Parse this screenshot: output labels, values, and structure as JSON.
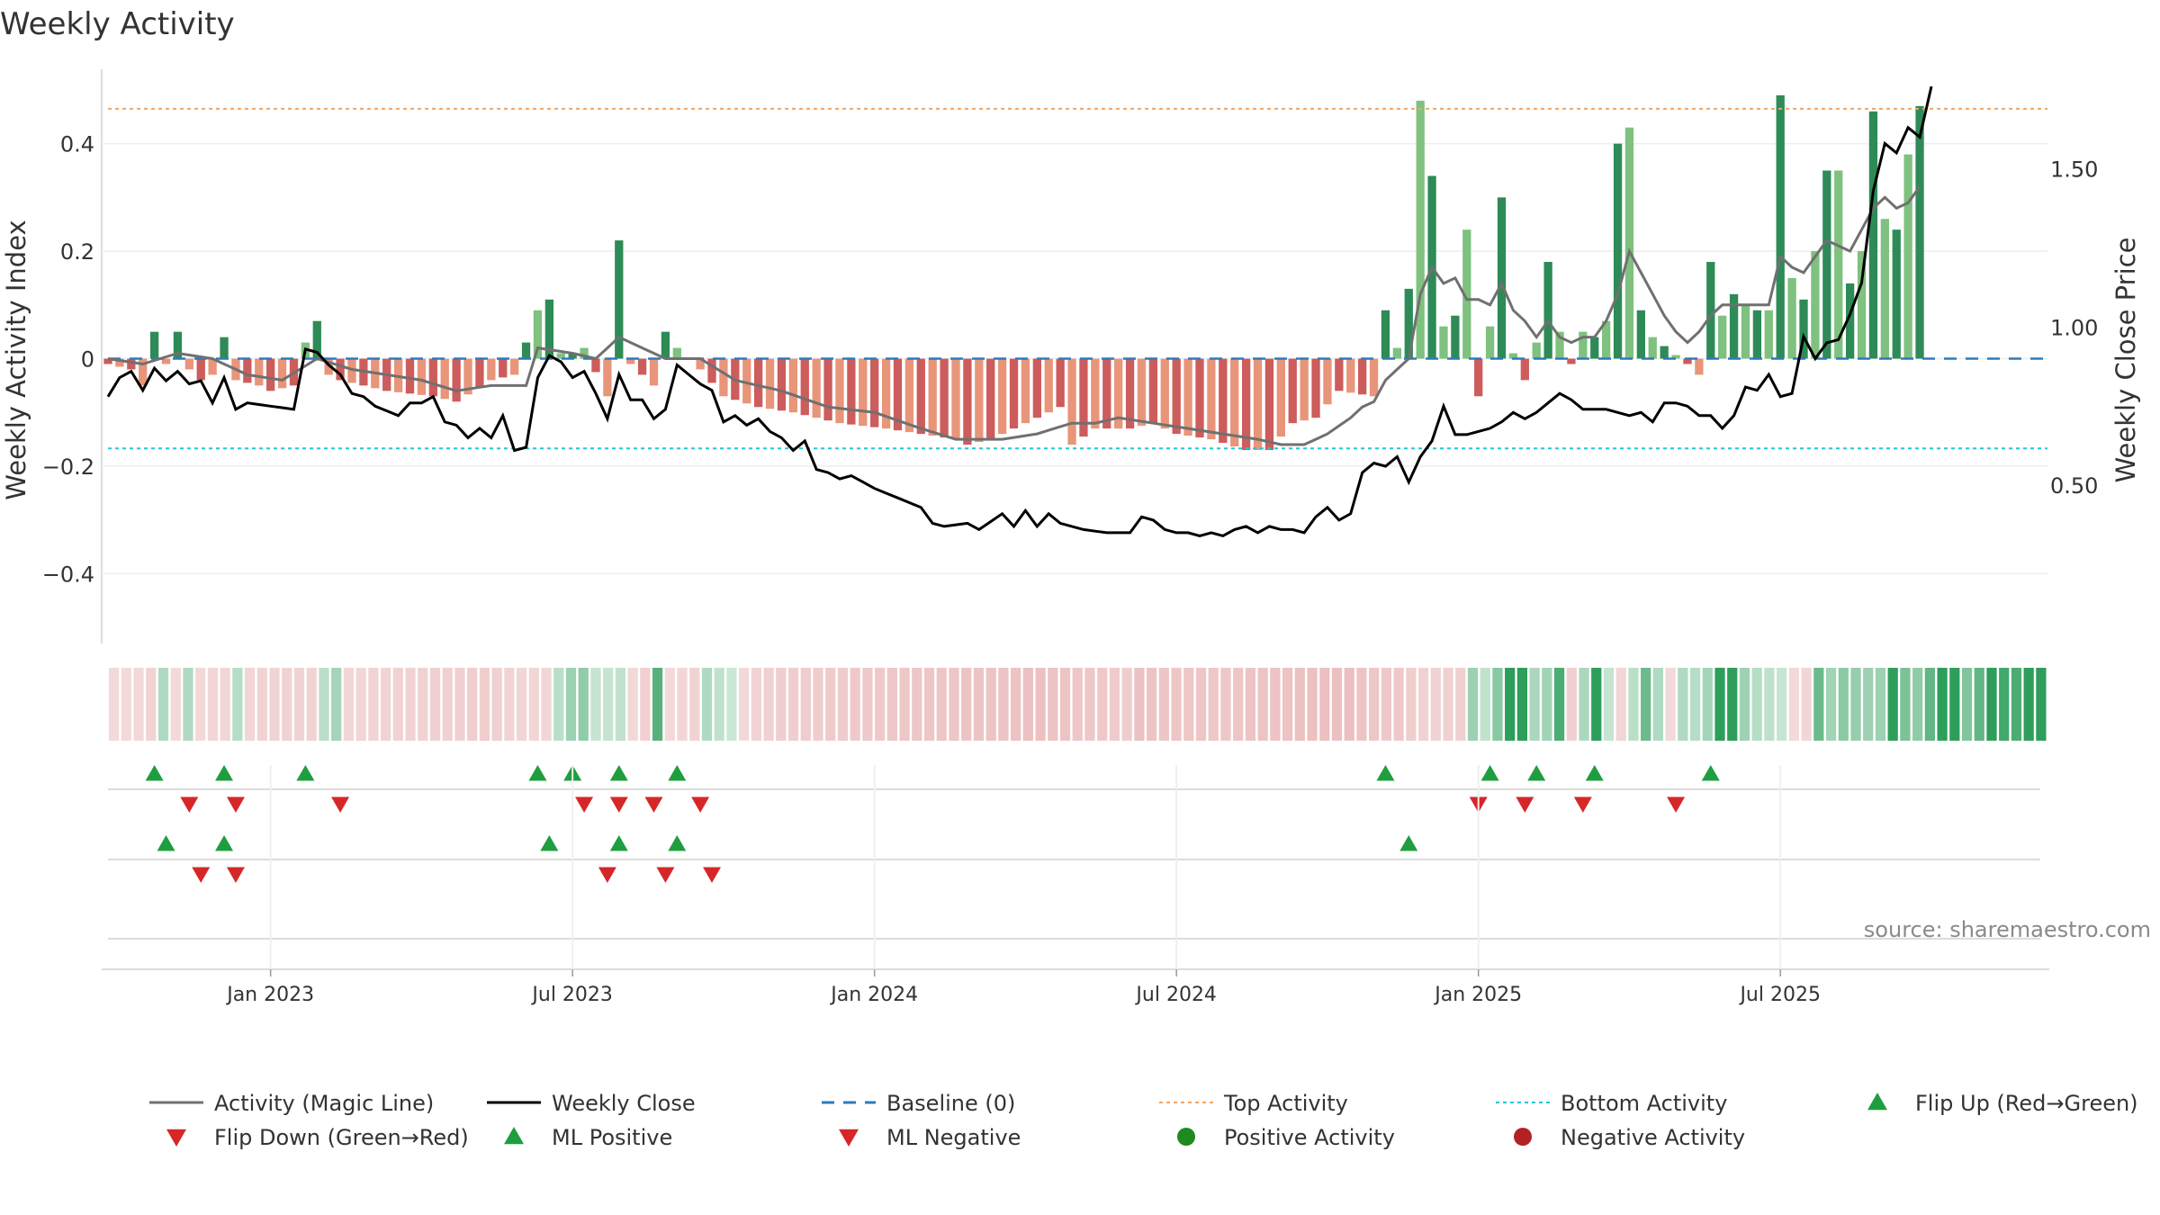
{
  "chart_data": {
    "type": "bar",
    "title": "Weekly Activity",
    "ylabel": "Weekly Activity Index",
    "y2label": "Weekly Close Price",
    "ylim": [
      -0.53,
      0.53
    ],
    "y2lim": [
      0.0,
      1.8
    ],
    "yticks": [
      {
        "v": 0.4,
        "label": "0.4"
      },
      {
        "v": 0.2,
        "label": "0.2"
      },
      {
        "v": 0,
        "label": "0"
      },
      {
        "v": -0.2,
        "label": "−0.2"
      },
      {
        "v": -0.4,
        "label": "−0.4"
      }
    ],
    "y2ticks": [
      {
        "v": 1.5,
        "label": "1.50"
      },
      {
        "v": 1.0,
        "label": "1.00"
      },
      {
        "v": 0.5,
        "label": "0.50"
      }
    ],
    "x_range_weeks": [
      0,
      167
    ],
    "xticks": [
      {
        "w": 14,
        "label": "Jan 2023"
      },
      {
        "w": 40,
        "label": "Jul 2023"
      },
      {
        "w": 66,
        "label": "Jan 2024"
      },
      {
        "w": 92,
        "label": "Jul 2024"
      },
      {
        "w": 118,
        "label": "Jan 2025"
      },
      {
        "w": 144,
        "label": "Jul 2025"
      }
    ],
    "top_activity": 0.465,
    "bottom_activity": -0.167,
    "baseline": 0,
    "activity_keys": [
      [
        0,
        -0.01
      ],
      [
        2,
        -0.02
      ],
      [
        3,
        -0.05
      ],
      [
        4,
        0.05
      ],
      [
        5,
        -0.01
      ],
      [
        6,
        0.05
      ],
      [
        7,
        -0.02
      ],
      [
        8,
        -0.04
      ],
      [
        9,
        -0.03
      ],
      [
        10,
        0.04
      ],
      [
        11,
        -0.04
      ],
      [
        13,
        -0.05
      ],
      [
        14,
        -0.06
      ],
      [
        16,
        -0.05
      ],
      [
        17,
        0.03
      ],
      [
        18,
        0.07
      ],
      [
        19,
        -0.03
      ],
      [
        20,
        -0.04
      ],
      [
        24,
        -0.06
      ],
      [
        28,
        -0.07
      ],
      [
        30,
        -0.08
      ],
      [
        33,
        -0.04
      ],
      [
        35,
        -0.03
      ],
      [
        37,
        0.09
      ],
      [
        38,
        0.11
      ],
      [
        39,
        0.01
      ],
      [
        40,
        0.01
      ],
      [
        41,
        0.02
      ],
      [
        43,
        -0.07
      ],
      [
        44,
        0.22
      ],
      [
        45,
        -0.01
      ],
      [
        47,
        -0.05
      ],
      [
        48,
        0.05
      ],
      [
        49,
        0.02
      ],
      [
        51,
        -0.02
      ],
      [
        53,
        -0.07
      ],
      [
        56,
        -0.09
      ],
      [
        59,
        -0.1
      ],
      [
        63,
        -0.12
      ],
      [
        67,
        -0.13
      ],
      [
        70,
        -0.14
      ],
      [
        73,
        -0.15
      ],
      [
        74,
        -0.16
      ],
      [
        76,
        -0.15
      ],
      [
        80,
        -0.11
      ],
      [
        82,
        -0.09
      ],
      [
        83,
        -0.16
      ],
      [
        85,
        -0.13
      ],
      [
        88,
        -0.13
      ],
      [
        90,
        -0.12
      ],
      [
        92,
        -0.14
      ],
      [
        95,
        -0.15
      ],
      [
        98,
        -0.17
      ],
      [
        100,
        -0.17
      ],
      [
        102,
        -0.12
      ],
      [
        104,
        -0.11
      ],
      [
        106,
        -0.06
      ],
      [
        109,
        -0.07
      ],
      [
        110,
        0.09
      ],
      [
        111,
        0.02
      ],
      [
        112,
        0.13
      ],
      [
        113,
        0.48
      ],
      [
        114,
        0.34
      ],
      [
        115,
        0.06
      ],
      [
        116,
        0.08
      ],
      [
        117,
        0.24
      ],
      [
        118,
        -0.07
      ],
      [
        119,
        0.06
      ],
      [
        120,
        0.3
      ],
      [
        121,
        0.01
      ],
      [
        122,
        -0.04
      ],
      [
        123,
        0.03
      ],
      [
        124,
        0.18
      ],
      [
        125,
        0.05
      ],
      [
        126,
        -0.01
      ],
      [
        127,
        0.05
      ],
      [
        128,
        0.04
      ],
      [
        129,
        0.07
      ],
      [
        130,
        0.4
      ],
      [
        131,
        0.43
      ],
      [
        132,
        0.09
      ],
      [
        133,
        0.04
      ],
      [
        136,
        -0.01
      ],
      [
        137,
        -0.03
      ],
      [
        138,
        0.18
      ],
      [
        139,
        0.08
      ],
      [
        140,
        0.12
      ],
      [
        141,
        0.1
      ],
      [
        142,
        0.09
      ],
      [
        143,
        0.09
      ],
      [
        144,
        0.49
      ],
      [
        145,
        0.15
      ],
      [
        146,
        0.11
      ],
      [
        147,
        0.2
      ],
      [
        148,
        0.35
      ],
      [
        149,
        0.35
      ],
      [
        150,
        0.14
      ],
      [
        151,
        0.2
      ],
      [
        152,
        0.46
      ],
      [
        153,
        0.26
      ],
      [
        154,
        0.24
      ],
      [
        155,
        0.38
      ],
      [
        156,
        0.47
      ]
    ],
    "magic_line_keys": [
      [
        0,
        0
      ],
      [
        3,
        -0.01
      ],
      [
        6,
        0.01
      ],
      [
        9,
        0
      ],
      [
        12,
        -0.03
      ],
      [
        15,
        -0.04
      ],
      [
        18,
        0.0
      ],
      [
        21,
        -0.02
      ],
      [
        24,
        -0.03
      ],
      [
        27,
        -0.04
      ],
      [
        30,
        -0.06
      ],
      [
        33,
        -0.05
      ],
      [
        36,
        -0.05
      ],
      [
        37,
        0.02
      ],
      [
        40,
        0.01
      ],
      [
        42,
        0
      ],
      [
        44,
        0.04
      ],
      [
        46,
        0.02
      ],
      [
        48,
        0
      ],
      [
        51,
        0
      ],
      [
        54,
        -0.04
      ],
      [
        58,
        -0.06
      ],
      [
        62,
        -0.09
      ],
      [
        66,
        -0.1
      ],
      [
        70,
        -0.13
      ],
      [
        73,
        -0.15
      ],
      [
        77,
        -0.15
      ],
      [
        80,
        -0.14
      ],
      [
        83,
        -0.12
      ],
      [
        85,
        -0.12
      ],
      [
        87,
        -0.11
      ],
      [
        90,
        -0.12
      ],
      [
        93,
        -0.13
      ],
      [
        96,
        -0.14
      ],
      [
        99,
        -0.15
      ],
      [
        101,
        -0.16
      ],
      [
        103,
        -0.16
      ],
      [
        105,
        -0.14
      ],
      [
        107,
        -0.11
      ],
      [
        108,
        -0.09
      ],
      [
        109,
        -0.08
      ],
      [
        110,
        -0.04
      ],
      [
        112,
        0.0
      ],
      [
        113,
        0.12
      ],
      [
        114,
        0.17
      ],
      [
        115,
        0.14
      ],
      [
        116,
        0.15
      ],
      [
        117,
        0.11
      ],
      [
        118,
        0.11
      ],
      [
        119,
        0.1
      ],
      [
        120,
        0.14
      ],
      [
        121,
        0.09
      ],
      [
        122,
        0.07
      ],
      [
        123,
        0.04
      ],
      [
        124,
        0.07
      ],
      [
        125,
        0.04
      ],
      [
        126,
        0.03
      ],
      [
        127,
        0.04
      ],
      [
        128,
        0.04
      ],
      [
        129,
        0.07
      ],
      [
        130,
        0.12
      ],
      [
        131,
        0.2
      ],
      [
        132,
        0.16
      ],
      [
        133,
        0.12
      ],
      [
        134,
        0.08
      ],
      [
        135,
        0.05
      ],
      [
        136,
        0.03
      ],
      [
        137,
        0.05
      ],
      [
        138,
        0.08
      ],
      [
        139,
        0.1
      ],
      [
        140,
        0.1
      ],
      [
        142,
        0.1
      ],
      [
        143,
        0.1
      ],
      [
        144,
        0.19
      ],
      [
        145,
        0.17
      ],
      [
        146,
        0.16
      ],
      [
        147,
        0.19
      ],
      [
        148,
        0.22
      ],
      [
        149,
        0.21
      ],
      [
        150,
        0.2
      ],
      [
        151,
        0.24
      ],
      [
        152,
        0.28
      ],
      [
        153,
        0.3
      ],
      [
        154,
        0.28
      ],
      [
        155,
        0.29
      ],
      [
        156,
        0.32
      ]
    ],
    "close_keys": [
      [
        0,
        0.78
      ],
      [
        1,
        0.84
      ],
      [
        2,
        0.86
      ],
      [
        3,
        0.8
      ],
      [
        4,
        0.87
      ],
      [
        5,
        0.83
      ],
      [
        6,
        0.86
      ],
      [
        7,
        0.82
      ],
      [
        8,
        0.83
      ],
      [
        9,
        0.76
      ],
      [
        10,
        0.84
      ],
      [
        11,
        0.74
      ],
      [
        12,
        0.76
      ],
      [
        14,
        0.75
      ],
      [
        16,
        0.74
      ],
      [
        17,
        0.93
      ],
      [
        18,
        0.92
      ],
      [
        19,
        0.88
      ],
      [
        20,
        0.85
      ],
      [
        21,
        0.79
      ],
      [
        22,
        0.78
      ],
      [
        23,
        0.75
      ],
      [
        25,
        0.72
      ],
      [
        26,
        0.76
      ],
      [
        27,
        0.76
      ],
      [
        28,
        0.78
      ],
      [
        29,
        0.7
      ],
      [
        30,
        0.69
      ],
      [
        31,
        0.65
      ],
      [
        32,
        0.68
      ],
      [
        33,
        0.65
      ],
      [
        34,
        0.72
      ],
      [
        35,
        0.61
      ],
      [
        36,
        0.62
      ],
      [
        37,
        0.84
      ],
      [
        38,
        0.91
      ],
      [
        39,
        0.89
      ],
      [
        40,
        0.84
      ],
      [
        41,
        0.86
      ],
      [
        42,
        0.79
      ],
      [
        43,
        0.71
      ],
      [
        44,
        0.85
      ],
      [
        45,
        0.77
      ],
      [
        46,
        0.77
      ],
      [
        47,
        0.71
      ],
      [
        48,
        0.74
      ],
      [
        49,
        0.88
      ],
      [
        50,
        0.85
      ],
      [
        51,
        0.82
      ],
      [
        52,
        0.8
      ],
      [
        53,
        0.7
      ],
      [
        54,
        0.72
      ],
      [
        55,
        0.69
      ],
      [
        56,
        0.71
      ],
      [
        57,
        0.67
      ],
      [
        58,
        0.65
      ],
      [
        59,
        0.61
      ],
      [
        60,
        0.64
      ],
      [
        61,
        0.55
      ],
      [
        62,
        0.54
      ],
      [
        63,
        0.52
      ],
      [
        64,
        0.53
      ],
      [
        65,
        0.51
      ],
      [
        66,
        0.49
      ],
      [
        68,
        0.46
      ],
      [
        70,
        0.43
      ],
      [
        71,
        0.38
      ],
      [
        72,
        0.37
      ],
      [
        74,
        0.38
      ],
      [
        75,
        0.36
      ],
      [
        77,
        0.41
      ],
      [
        78,
        0.37
      ],
      [
        79,
        0.42
      ],
      [
        80,
        0.37
      ],
      [
        81,
        0.41
      ],
      [
        82,
        0.38
      ],
      [
        84,
        0.36
      ],
      [
        86,
        0.35
      ],
      [
        88,
        0.35
      ],
      [
        89,
        0.4
      ],
      [
        90,
        0.39
      ],
      [
        91,
        0.36
      ],
      [
        92,
        0.35
      ],
      [
        93,
        0.35
      ],
      [
        94,
        0.34
      ],
      [
        95,
        0.35
      ],
      [
        96,
        0.34
      ],
      [
        97,
        0.36
      ],
      [
        98,
        0.37
      ],
      [
        99,
        0.35
      ],
      [
        100,
        0.37
      ],
      [
        101,
        0.36
      ],
      [
        102,
        0.36
      ],
      [
        103,
        0.35
      ],
      [
        104,
        0.4
      ],
      [
        105,
        0.43
      ],
      [
        106,
        0.39
      ],
      [
        107,
        0.41
      ],
      [
        108,
        0.54
      ],
      [
        109,
        0.57
      ],
      [
        110,
        0.56
      ],
      [
        111,
        0.59
      ],
      [
        112,
        0.51
      ],
      [
        113,
        0.59
      ],
      [
        114,
        0.64
      ],
      [
        115,
        0.75
      ],
      [
        116,
        0.66
      ],
      [
        117,
        0.66
      ],
      [
        118,
        0.67
      ],
      [
        119,
        0.68
      ],
      [
        120,
        0.7
      ],
      [
        121,
        0.73
      ],
      [
        122,
        0.71
      ],
      [
        123,
        0.73
      ],
      [
        124,
        0.76
      ],
      [
        125,
        0.79
      ],
      [
        126,
        0.77
      ],
      [
        127,
        0.74
      ],
      [
        128,
        0.74
      ],
      [
        129,
        0.74
      ],
      [
        130,
        0.73
      ],
      [
        131,
        0.72
      ],
      [
        132,
        0.73
      ],
      [
        133,
        0.7
      ],
      [
        134,
        0.76
      ],
      [
        135,
        0.76
      ],
      [
        136,
        0.75
      ],
      [
        137,
        0.72
      ],
      [
        138,
        0.72
      ],
      [
        139,
        0.68
      ],
      [
        140,
        0.72
      ],
      [
        141,
        0.81
      ],
      [
        142,
        0.8
      ],
      [
        143,
        0.85
      ],
      [
        144,
        0.78
      ],
      [
        145,
        0.79
      ],
      [
        146,
        0.97
      ],
      [
        147,
        0.9
      ],
      [
        148,
        0.95
      ],
      [
        149,
        0.96
      ],
      [
        150,
        1.04
      ],
      [
        151,
        1.14
      ],
      [
        152,
        1.43
      ],
      [
        153,
        1.58
      ],
      [
        154,
        1.55
      ],
      [
        155,
        1.63
      ],
      [
        156,
        1.6
      ],
      [
        157,
        1.76
      ]
    ],
    "flip_up_row1_weeks": [
      4,
      10,
      17,
      37,
      40,
      44,
      49,
      110,
      119,
      123,
      128,
      138
    ],
    "flip_down_row1_weeks": [
      7,
      11,
      20,
      41,
      44,
      47,
      51,
      118,
      122,
      127,
      135
    ],
    "ml_positive_weeks": [
      5,
      10,
      38,
      44,
      49,
      112
    ],
    "ml_negative_weeks": [
      8,
      11,
      43,
      48,
      52
    ],
    "source": "source: sharemaestro.com",
    "legend": [
      {
        "label": "Activity (Magic Line)",
        "kind": "line",
        "color": "#707070"
      },
      {
        "label": "Weekly Close",
        "kind": "line",
        "color": "#000000"
      },
      {
        "label": "Baseline (0)",
        "kind": "dash",
        "color": "#2b7bbf"
      },
      {
        "label": "Top Activity",
        "kind": "dot-line",
        "color": "#f4a460"
      },
      {
        "label": "Bottom Activity",
        "kind": "dot-line",
        "color": "#22c6d8"
      },
      {
        "label": "Flip Up (Red→Green)",
        "kind": "tri-up",
        "color": "#1f9e3f"
      },
      {
        "label": "Flip Down (Green→Red)",
        "kind": "tri-down",
        "color": "#d62728"
      },
      {
        "label": "ML Positive",
        "kind": "tri-up",
        "color": "#1f9e3f"
      },
      {
        "label": "ML Negative",
        "kind": "tri-down",
        "color": "#d62728"
      },
      {
        "label": "Positive Activity",
        "kind": "circle",
        "color": "#1f8a1f"
      },
      {
        "label": "Negative Activity",
        "kind": "circle",
        "color": "#b22222"
      }
    ]
  }
}
